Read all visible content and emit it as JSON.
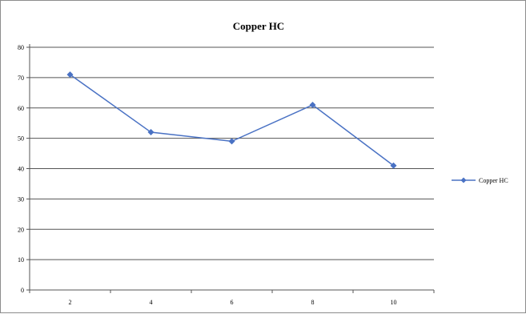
{
  "chart_data": {
    "type": "line",
    "title": "Copper HC",
    "xlabel": "",
    "ylabel": "",
    "x": [
      2,
      4,
      6,
      8,
      10
    ],
    "xticks": [
      "2",
      "4",
      "6",
      "8",
      "10"
    ],
    "yticks": [
      "0",
      "10",
      "20",
      "30",
      "40",
      "50",
      "60",
      "70",
      "80"
    ],
    "ylim": [
      0,
      80
    ],
    "grid": "horizontal",
    "legend_position": "right",
    "series": [
      {
        "name": "Copper HC",
        "values": [
          71,
          52,
          49,
          61,
          41
        ],
        "color": "#4a72c4"
      }
    ]
  }
}
